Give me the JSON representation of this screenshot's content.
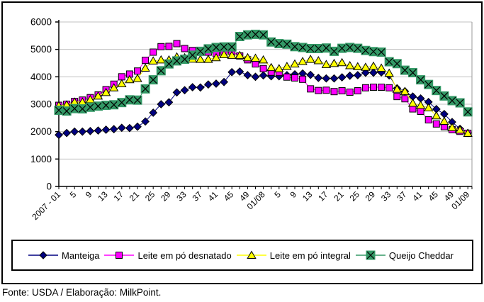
{
  "footer": {
    "text": "Fonte: USDA / Elaboração: MilkPoint."
  },
  "chart_data": {
    "type": "line",
    "title": "",
    "xlabel": "",
    "ylabel": "",
    "ylim": [
      0,
      6000
    ],
    "y_tick_step": 1000,
    "y_tick_labels": [
      "0",
      "1000",
      "2000",
      "3000",
      "4000",
      "5000",
      "6000"
    ],
    "x_tick_labels": [
      "2007 - 01",
      "5",
      "9",
      "13",
      "17",
      "21",
      "25",
      "29",
      "33",
      "37",
      "41",
      "45",
      "49",
      "01/08",
      "5",
      "9",
      "13",
      "17",
      "21",
      "25",
      "29",
      "33",
      "37",
      "41",
      "45",
      "49",
      "01/09"
    ],
    "x_label_every_n_points": 2,
    "n_points": 53,
    "grid": "horizontal",
    "grid_color": "#c0c0c0",
    "plot_border_color": "#999999",
    "axis_color": "#000000",
    "legend_position": "bottom",
    "series": [
      {
        "name": "Manteiga",
        "color": "#000080",
        "marker": "diamond",
        "values": [
          1880,
          1950,
          2000,
          2000,
          2020,
          2040,
          2070,
          2090,
          2140,
          2130,
          2180,
          2370,
          2690,
          3000,
          3070,
          3430,
          3510,
          3620,
          3610,
          3720,
          3750,
          3810,
          4170,
          4190,
          4060,
          4000,
          4050,
          4020,
          4020,
          4060,
          4090,
          4120,
          4070,
          3960,
          3940,
          3940,
          3980,
          4040,
          4060,
          4150,
          4150,
          4160,
          4050,
          3580,
          3470,
          3280,
          3210,
          3080,
          2820,
          2640,
          2350,
          2100,
          1950
        ]
      },
      {
        "name": "Leite em pó desnatado",
        "color": "#ff00ff",
        "marker": "square",
        "values": [
          2960,
          3000,
          3100,
          3150,
          3240,
          3340,
          3530,
          3730,
          4000,
          4100,
          4210,
          4600,
          4900,
          5100,
          5110,
          5210,
          5030,
          4960,
          4920,
          4900,
          4850,
          4880,
          4920,
          4760,
          4620,
          4470,
          4300,
          4170,
          4160,
          3990,
          3960,
          3910,
          3560,
          3500,
          3510,
          3460,
          3490,
          3440,
          3490,
          3600,
          3620,
          3620,
          3600,
          3280,
          3200,
          2830,
          2740,
          2430,
          2280,
          2180,
          2070,
          2010,
          1940
        ]
      },
      {
        "name": "Leite em pó integral",
        "color": "#ffff00",
        "marker": "triangle",
        "values": [
          2950,
          2980,
          3080,
          3080,
          3170,
          3300,
          3430,
          3600,
          3750,
          3900,
          3940,
          4320,
          4580,
          4620,
          4620,
          4730,
          4700,
          4650,
          4640,
          4640,
          4700,
          4810,
          4780,
          4780,
          4700,
          4680,
          4620,
          4340,
          4300,
          4380,
          4470,
          4560,
          4640,
          4590,
          4450,
          4490,
          4520,
          4410,
          4370,
          4350,
          4390,
          4320,
          4130,
          3550,
          3470,
          3040,
          2960,
          2870,
          2580,
          2380,
          2150,
          2060,
          1940
        ]
      },
      {
        "name": "Queijo Cheddar",
        "color": "#339966",
        "marker": "x-square",
        "values": [
          2780,
          2750,
          2840,
          2830,
          2890,
          2930,
          2960,
          2980,
          3060,
          3160,
          3150,
          3560,
          3890,
          4220,
          4470,
          4580,
          4640,
          4790,
          4930,
          5020,
          5070,
          5090,
          5090,
          5470,
          5530,
          5550,
          5530,
          5270,
          5210,
          5190,
          5100,
          5070,
          5030,
          5030,
          5050,
          4930,
          5040,
          5070,
          5040,
          4960,
          4920,
          4900,
          4550,
          4480,
          4240,
          4150,
          3890,
          3720,
          3500,
          3300,
          3130,
          3050,
          2720
        ]
      }
    ]
  }
}
